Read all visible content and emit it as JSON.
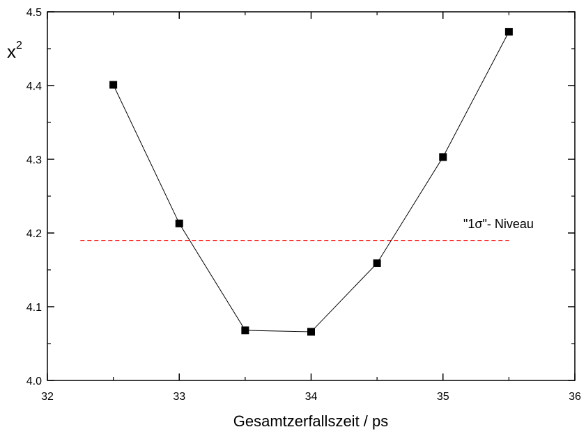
{
  "chart_data": {
    "type": "scatter",
    "xlabel": "Gesamtzerfallszeit / ps",
    "ylabel": "x",
    "ylabel_superscript": "2",
    "xlim": [
      32,
      36
    ],
    "ylim": [
      4.0,
      4.5
    ],
    "x_ticks": [
      "32",
      "33",
      "34",
      "35",
      "36"
    ],
    "y_ticks": [
      "4.0",
      "4.1",
      "4.2",
      "4.3",
      "4.4",
      "4.5"
    ],
    "grid": false,
    "series": [
      {
        "marker": "square",
        "line": "solid",
        "color": "#000000",
        "points": [
          {
            "x": 32.5,
            "y": 4.401
          },
          {
            "x": 33.0,
            "y": 4.213
          },
          {
            "x": 33.5,
            "y": 4.068
          },
          {
            "x": 34.0,
            "y": 4.066
          },
          {
            "x": 34.5,
            "y": 4.159
          },
          {
            "x": 35.0,
            "y": 4.303
          },
          {
            "x": 35.5,
            "y": 4.473
          }
        ]
      }
    ],
    "reference_line": {
      "y": 4.19,
      "x_range": [
        32.25,
        35.5
      ],
      "color": "#ff0000",
      "style": "dashed",
      "label": "\"1σ\"- Niveau"
    }
  }
}
